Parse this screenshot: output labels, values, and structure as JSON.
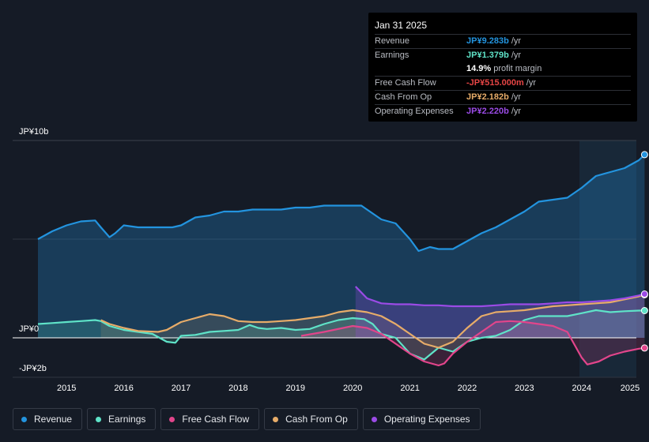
{
  "chart_data": {
    "type": "line",
    "y_axis": {
      "top_label": "JP¥10b",
      "zero_label": "JP¥0",
      "bottom_label": "-JP¥2b",
      "ylim": [
        -2,
        10
      ]
    },
    "x_ticks": [
      "2015",
      "2016",
      "2017",
      "2018",
      "2019",
      "2020",
      "2021",
      "2022",
      "2023",
      "2024",
      "2025"
    ],
    "series": [
      {
        "name": "Revenue",
        "color": "#2394df",
        "x": [
          2014.5,
          2014.75,
          2015.0,
          2015.25,
          2015.5,
          2015.6,
          2015.75,
          2015.85,
          2016.0,
          2016.25,
          2016.5,
          2016.85,
          2017.0,
          2017.25,
          2017.5,
          2017.75,
          2018.0,
          2018.25,
          2018.5,
          2018.75,
          2019.0,
          2019.25,
          2019.5,
          2019.75,
          2020.0,
          2020.15,
          2020.25,
          2020.5,
          2020.75,
          2021.0,
          2021.15,
          2021.35,
          2021.5,
          2021.75,
          2022.0,
          2022.25,
          2022.5,
          2022.75,
          2023.0,
          2023.25,
          2023.5,
          2023.75,
          2024.0,
          2024.25,
          2024.5,
          2024.75,
          2025.0,
          2025.1
        ],
        "values": [
          5.0,
          5.4,
          5.7,
          5.9,
          5.95,
          5.6,
          5.1,
          5.3,
          5.7,
          5.6,
          5.6,
          5.6,
          5.7,
          6.1,
          6.2,
          6.4,
          6.4,
          6.5,
          6.5,
          6.5,
          6.6,
          6.6,
          6.7,
          6.7,
          6.7,
          6.7,
          6.5,
          6.0,
          5.8,
          5.0,
          4.4,
          4.6,
          4.5,
          4.5,
          4.9,
          5.3,
          5.6,
          6.0,
          6.4,
          6.9,
          7.0,
          7.1,
          7.6,
          8.2,
          8.4,
          8.6,
          9.0,
          9.283
        ]
      },
      {
        "name": "Earnings",
        "color": "#5fe3c8",
        "x": [
          2014.5,
          2014.75,
          2015.0,
          2015.25,
          2015.5,
          2015.6,
          2015.75,
          2016.0,
          2016.25,
          2016.5,
          2016.75,
          2016.9,
          2017.0,
          2017.25,
          2017.5,
          2017.75,
          2018.0,
          2018.2,
          2018.35,
          2018.5,
          2018.75,
          2019.0,
          2019.25,
          2019.5,
          2019.75,
          2020.0,
          2020.2,
          2020.35,
          2020.5,
          2020.75,
          2021.0,
          2021.25,
          2021.5,
          2021.75,
          2022.0,
          2022.25,
          2022.5,
          2022.75,
          2023.0,
          2023.25,
          2023.5,
          2023.75,
          2024.0,
          2024.25,
          2024.5,
          2024.75,
          2025.0,
          2025.1
        ],
        "values": [
          0.7,
          0.75,
          0.8,
          0.85,
          0.9,
          0.85,
          0.6,
          0.4,
          0.3,
          0.2,
          -0.2,
          -0.25,
          0.1,
          0.15,
          0.3,
          0.35,
          0.4,
          0.65,
          0.5,
          0.45,
          0.5,
          0.4,
          0.45,
          0.7,
          0.9,
          1.0,
          0.95,
          0.7,
          0.2,
          0.0,
          -0.8,
          -1.1,
          -0.5,
          -0.7,
          -0.2,
          0.0,
          0.1,
          0.4,
          0.9,
          1.1,
          1.1,
          1.1,
          1.25,
          1.4,
          1.3,
          1.35,
          1.379,
          1.379
        ]
      },
      {
        "name": "Free Cash Flow",
        "color": "#e2458b",
        "x": [
          2019.1,
          2019.5,
          2020.0,
          2020.25,
          2020.5,
          2020.75,
          2021.0,
          2021.25,
          2021.5,
          2021.6,
          2021.75,
          2022.0,
          2022.25,
          2022.5,
          2022.75,
          2023.0,
          2023.25,
          2023.5,
          2023.75,
          2024.0,
          2024.1,
          2024.3,
          2024.5,
          2024.75,
          2025.0,
          2025.1
        ],
        "values": [
          0.1,
          0.3,
          0.6,
          0.5,
          0.2,
          -0.3,
          -0.8,
          -1.2,
          -1.4,
          -1.3,
          -0.8,
          -0.2,
          0.3,
          0.8,
          0.85,
          0.8,
          0.7,
          0.6,
          0.3,
          -1.0,
          -1.35,
          -1.2,
          -0.9,
          -0.7,
          -0.55,
          -0.515
        ]
      },
      {
        "name": "Cash From Op",
        "color": "#e7ac69",
        "x": [
          2015.6,
          2015.75,
          2016.0,
          2016.25,
          2016.6,
          2016.75,
          2017.0,
          2017.25,
          2017.5,
          2017.75,
          2018.0,
          2018.25,
          2018.5,
          2018.75,
          2019.0,
          2019.25,
          2019.5,
          2019.75,
          2020.0,
          2020.25,
          2020.5,
          2020.75,
          2021.0,
          2021.25,
          2021.5,
          2021.75,
          2022.0,
          2022.25,
          2022.5,
          2022.75,
          2023.0,
          2023.25,
          2023.5,
          2023.75,
          2024.0,
          2024.25,
          2024.5,
          2024.75,
          2025.0,
          2025.1
        ],
        "values": [
          0.9,
          0.7,
          0.5,
          0.35,
          0.3,
          0.4,
          0.8,
          1.0,
          1.2,
          1.1,
          0.85,
          0.8,
          0.8,
          0.85,
          0.9,
          1.0,
          1.1,
          1.3,
          1.4,
          1.3,
          1.1,
          0.7,
          0.2,
          -0.3,
          -0.5,
          -0.2,
          0.5,
          1.1,
          1.3,
          1.35,
          1.4,
          1.5,
          1.6,
          1.65,
          1.7,
          1.75,
          1.8,
          1.95,
          2.1,
          2.182
        ]
      },
      {
        "name": "Operating Expenses",
        "color": "#9b4be6",
        "x": [
          2020.05,
          2020.25,
          2020.5,
          2020.75,
          2021.0,
          2021.25,
          2021.5,
          2021.75,
          2022.0,
          2022.25,
          2022.5,
          2022.75,
          2023.0,
          2023.25,
          2023.5,
          2023.75,
          2024.0,
          2024.25,
          2024.5,
          2024.75,
          2025.0,
          2025.1
        ],
        "values": [
          2.6,
          2.0,
          1.75,
          1.7,
          1.7,
          1.65,
          1.65,
          1.6,
          1.6,
          1.6,
          1.65,
          1.7,
          1.7,
          1.7,
          1.75,
          1.8,
          1.8,
          1.85,
          1.9,
          2.0,
          2.15,
          2.22
        ]
      }
    ]
  },
  "tooltip": {
    "date": "Jan 31 2025",
    "rows": [
      {
        "label": "Revenue",
        "value": "JP¥9.283b",
        "unit": "/yr",
        "color": "#2394df"
      },
      {
        "label": "Earnings",
        "value": "JP¥1.379b",
        "unit": "/yr",
        "color": "#5fe3c8"
      },
      {
        "label": "",
        "value": "14.9%",
        "unit": "profit margin",
        "color": "#ffffff"
      },
      {
        "label": "Free Cash Flow",
        "value": "-JP¥515.000m",
        "unit": "/yr",
        "color": "#e64545"
      },
      {
        "label": "Cash From Op",
        "value": "JP¥2.182b",
        "unit": "/yr",
        "color": "#e7ac69"
      },
      {
        "label": "Operating Expenses",
        "value": "JP¥2.220b",
        "unit": "/yr",
        "color": "#9b4be6"
      }
    ]
  },
  "legend": [
    {
      "label": "Revenue",
      "color": "#2394df"
    },
    {
      "label": "Earnings",
      "color": "#5fe3c8"
    },
    {
      "label": "Free Cash Flow",
      "color": "#e2458b"
    },
    {
      "label": "Cash From Op",
      "color": "#e7ac69"
    },
    {
      "label": "Operating Expenses",
      "color": "#9b4be6"
    }
  ]
}
